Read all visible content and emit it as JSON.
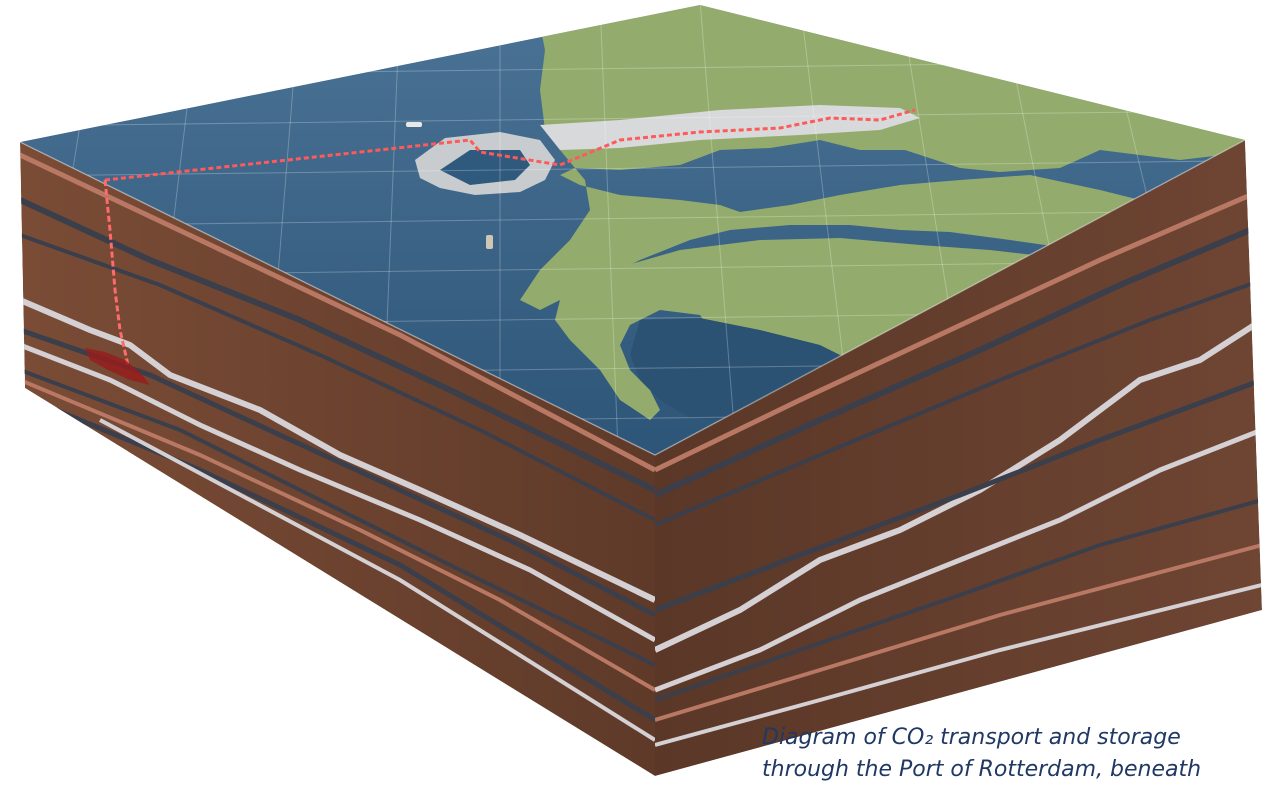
{
  "caption": {
    "line1": "Diagram of CO₂ transport and storage",
    "line2": "through the Port of Rotterdam, beneath"
  },
  "colors": {
    "sea": "#2f5a7e",
    "land": "#93ac6d",
    "rock": "#6b4330",
    "dark_layer": "#3a3f4b",
    "light_layer": "#d4d0d3",
    "pink_layer": "#b97863",
    "pipeline": "#ff5555",
    "caption": "#1f3864"
  },
  "icons": [
    "pipeline-route",
    "ship-icon",
    "port-facility",
    "injection-well",
    "storage-reservoir"
  ]
}
